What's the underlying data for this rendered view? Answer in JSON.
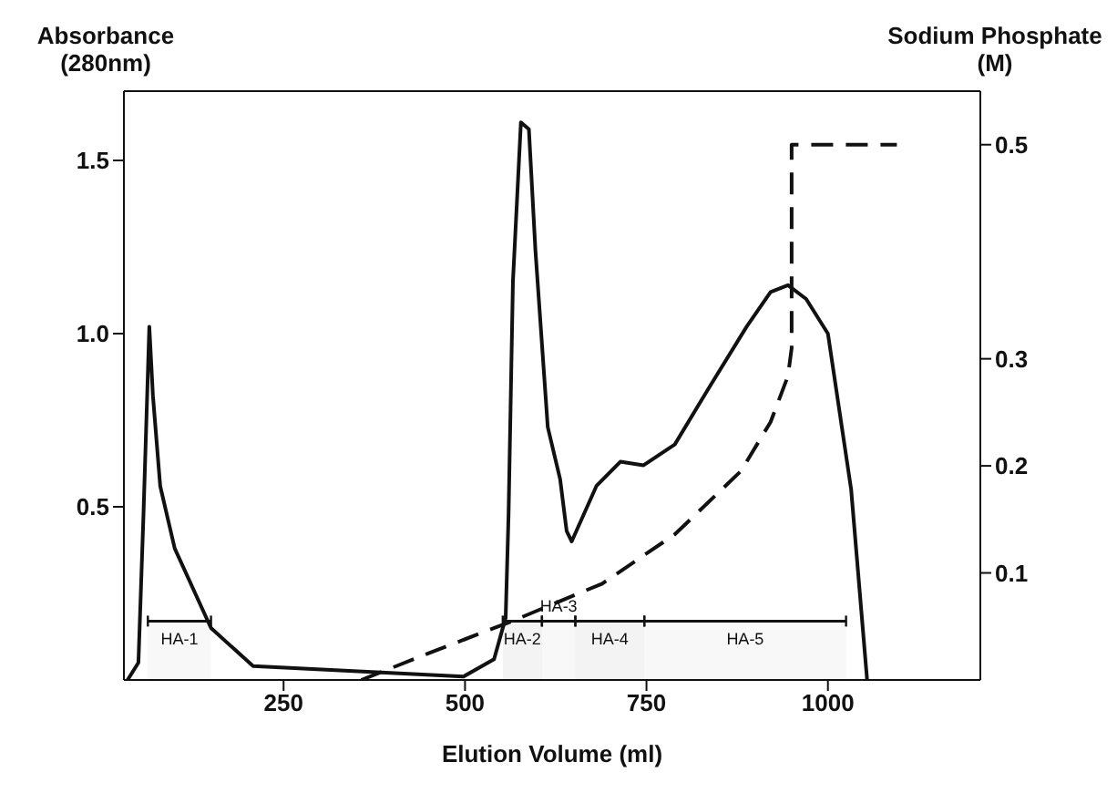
{
  "chart_data": {
    "type": "line",
    "xlabel": "Elution Volume (ml)",
    "ylabel": "Absorbance\n(280nm)",
    "y2label": "Sodium Phosphate\n(M)",
    "xlim": [
      30,
      1210
    ],
    "xticks": [
      250,
      500,
      750,
      1000
    ],
    "ylim": [
      0,
      1.7
    ],
    "yticks": [
      0.5,
      {
        "value": 1,
        "label": "1.0"
      },
      1.5
    ],
    "y2lim": [
      0,
      0.55
    ],
    "y2ticks": [
      0.1,
      0.2,
      0.3,
      0.5
    ],
    "marker": "none",
    "series": [
      {
        "color": "#111111",
        "line_style": "solid",
        "x": [
          35,
          50,
          57,
          65,
          70,
          80,
          100,
          150,
          208,
          498,
          540,
          556,
          560,
          566,
          577,
          588,
          597,
          614,
          631,
          640,
          647,
          681,
          714,
          746,
          789,
          838,
          888,
          921,
          945,
          970,
          1000,
          1032,
          1054
        ],
        "values": [
          0,
          0.05,
          0.48,
          1.02,
          0.82,
          0.56,
          0.38,
          0.15,
          0.04,
          0.01,
          0.06,
          0.18,
          0.48,
          1.15,
          1.61,
          1.59,
          1.24,
          0.73,
          0.58,
          0.43,
          0.4,
          0.56,
          0.63,
          0.62,
          0.68,
          0.85,
          1.02,
          1.12,
          1.14,
          1.1,
          1.0,
          0.55,
          0
        ]
      },
      {
        "color": "#111111",
        "line_style": "dashed",
        "axis": "y2",
        "x": [
          357,
          450,
          565,
          689,
          789,
          880,
          921,
          945,
          950,
          950,
          1095
        ],
        "values": [
          0,
          0.025,
          0.055,
          0.09,
          0.136,
          0.195,
          0.241,
          0.284,
          0.31,
          0.5,
          0.5
        ]
      }
    ],
    "bands": [
      {
        "axis": "x",
        "from": 63,
        "to": 150,
        "label": "HA-1"
      },
      {
        "axis": "x",
        "from": 552,
        "to": 606,
        "label": "HA-2"
      },
      {
        "axis": "x",
        "from": 606,
        "to": 652,
        "label": "HA-3"
      },
      {
        "axis": "x",
        "from": 652,
        "to": 747,
        "label": "HA-4"
      },
      {
        "axis": "x",
        "from": 747,
        "to": 1025,
        "label": "HA-5"
      }
    ]
  }
}
